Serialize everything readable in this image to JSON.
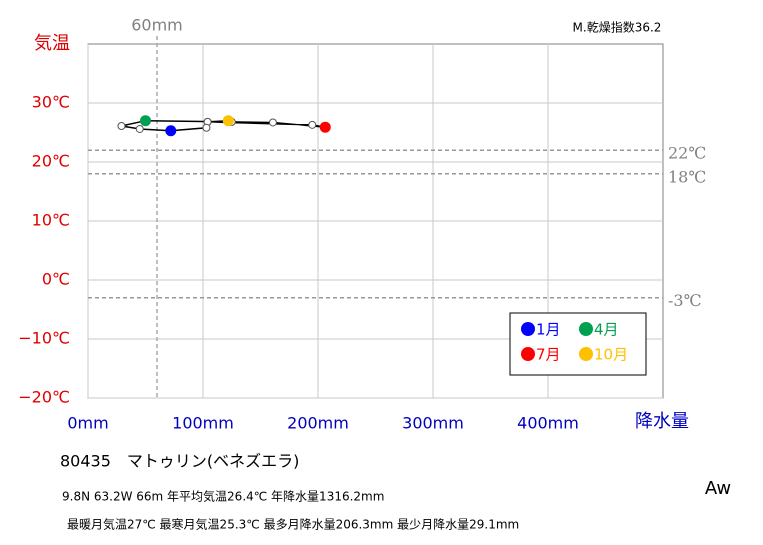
{
  "chart_data": {
    "type": "climograph",
    "header": "M.乾燥指数36.2",
    "y_axis_label": "気温",
    "x_axis_label": "降水量",
    "xlim": [
      0,
      500
    ],
    "ylim": [
      -20,
      40
    ],
    "xticks": [
      {
        "value": 0,
        "label": "0mm"
      },
      {
        "value": 100,
        "label": "100mm"
      },
      {
        "value": 200,
        "label": "200mm"
      },
      {
        "value": 300,
        "label": "300mm"
      },
      {
        "value": 400,
        "label": "400mm"
      }
    ],
    "yticks": [
      {
        "value": -20,
        "label": "−20℃"
      },
      {
        "value": -10,
        "label": "−10℃"
      },
      {
        "value": 0,
        "label": "0℃"
      },
      {
        "value": 10,
        "label": "10℃"
      },
      {
        "value": 20,
        "label": "20℃"
      },
      {
        "value": 30,
        "label": "30℃"
      }
    ],
    "grid": true,
    "x": [
      72,
      45,
      29.1,
      50,
      125,
      160.8,
      206.3,
      195,
      104,
      122,
      104,
      103
    ],
    "values": [
      25.3,
      25.6,
      26.1,
      27.0,
      26.8,
      26.7,
      25.9,
      26.3,
      26.8,
      27.0,
      26.8,
      25.8
    ],
    "series": [
      {
        "name": "1月",
        "color": "#0000ff"
      },
      {
        "name": "4月",
        "color": "#00a050"
      },
      {
        "name": "7月",
        "color": "#ff0000"
      },
      {
        "name": "10月",
        "color": "#ffc000"
      }
    ],
    "reference_lines_y": [
      {
        "value": 22,
        "label": "22℃"
      },
      {
        "value": 18,
        "label": "18℃"
      },
      {
        "value": -3,
        "label": "-3℃"
      }
    ],
    "reference_line_x": {
      "value": 60,
      "label": "60mm"
    },
    "station": "80435　マトゥリン(ベネズエラ)",
    "info_line_1": "9.8N  63.2W 66m  年平均気温26.4℃ 年降水量1316.2mm",
    "info_line_2": "最暖月気温27℃ 最寒月気温25.3℃ 最多月降水量206.3mm 最少月降水量29.1mm",
    "climate_class": "Aw"
  }
}
